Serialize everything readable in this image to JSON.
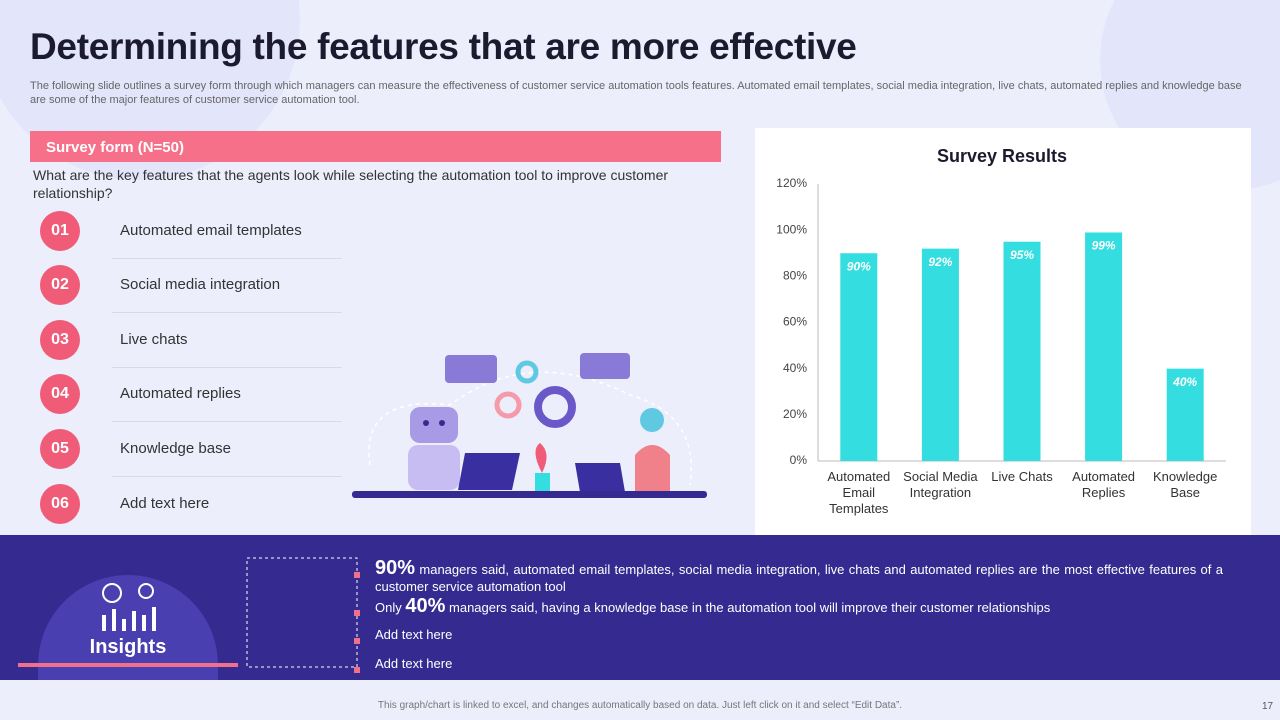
{
  "header": {
    "title": "Determining the features that are more effective",
    "subtitle": "The following slide outlines a survey form through which managers can measure the effectiveness of customer service automation tools features. Automated email templates, social media integration, live chats, automated replies and knowledge base are some of the major features of customer service automation tool."
  },
  "survey": {
    "label": "Survey form (N=50)",
    "question": "What are the key features that the agents look while selecting the automation tool to improve customer relationship?",
    "items": [
      {
        "number": "01",
        "text": "Automated email templates"
      },
      {
        "number": "02",
        "text": "Social media integration"
      },
      {
        "number": "03",
        "text": "Live chats"
      },
      {
        "number": "04",
        "text": "Automated replies"
      },
      {
        "number": "05",
        "text": "Knowledge base"
      },
      {
        "number": "06",
        "text": "Add text here"
      }
    ]
  },
  "chart_data": {
    "type": "bar",
    "title": "Survey Results",
    "categories": [
      "Automated Email Templates",
      "Social Media Integration",
      "Live Chats",
      "Automated Replies",
      "Knowledge Base"
    ],
    "values": [
      90,
      92,
      95,
      99,
      40
    ],
    "value_labels": [
      "90%",
      "92%",
      "95%",
      "99%",
      "40%"
    ],
    "color": "#33dde0",
    "ylim": [
      0,
      120
    ],
    "yticks": [
      {
        "value": 0,
        "label": "0%"
      },
      {
        "value": 20,
        "label": "20%"
      },
      {
        "value": 40,
        "label": "40%"
      },
      {
        "value": 60,
        "label": "60%"
      },
      {
        "value": 80,
        "label": "80%"
      },
      {
        "value": 100,
        "label": "100%"
      },
      {
        "value": 120,
        "label": "120%"
      }
    ],
    "grid": false
  },
  "insights": {
    "label": "Insights",
    "items": [
      {
        "highlight": "90%",
        "text": "managers said, automated email templates, social media integration, live chats and automated replies are the most effective features of a customer service automation tool"
      },
      {
        "prefix": "Only",
        "highlight": "40%",
        "text": "managers said, having a knowledge base in the automation tool will improve their customer relationships"
      },
      {
        "text": "Add text here"
      },
      {
        "text": "Add text here"
      }
    ]
  },
  "footer": {
    "note": "This graph/chart is linked to excel, and changes automatically based on data. Just left click on it and select “Edit Data”.",
    "page": "17"
  }
}
